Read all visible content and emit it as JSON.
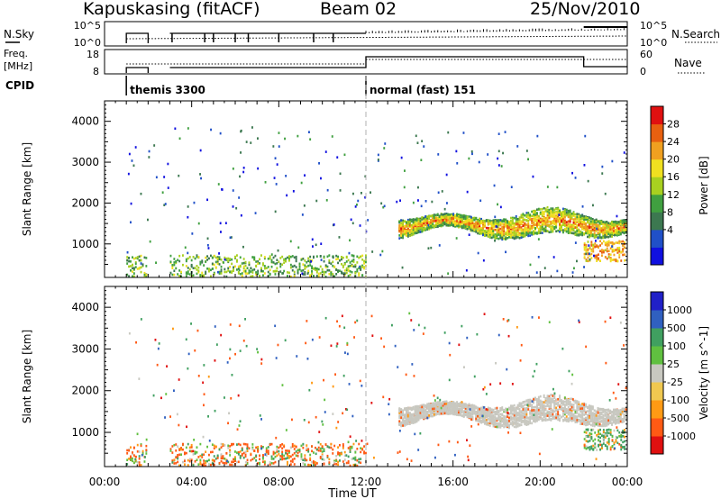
{
  "header": {
    "station": "Kapuskasing (fitACF)",
    "beam": "Beam 02",
    "date": "25/Nov/2010"
  },
  "summary": {
    "nsky": {
      "label": "N.Sky",
      "ticks": [
        "10^5",
        "10^0"
      ]
    },
    "nsearch": {
      "label": "N.Search",
      "ticks": [
        "10^5",
        "10^0"
      ]
    },
    "freq": {
      "label_top": "Freq.",
      "label_bottom": "[MHz]",
      "ticks": [
        "18",
        "8"
      ]
    },
    "nave": {
      "label": "Nave",
      "ticks": [
        "60",
        "0"
      ]
    },
    "cpid": {
      "label": "CPID",
      "modes": [
        {
          "name": "themis 3300",
          "start_hour": 1.0,
          "end_hour": 12.0
        },
        {
          "name": "normal (fast) 151",
          "start_hour": 12.0,
          "end_hour": 24.0
        }
      ]
    }
  },
  "chart_data": [
    {
      "type": "heatmap",
      "quantity": "Power",
      "xlabel": "",
      "ylabel": "Slant Range [km]",
      "xlim": [
        0,
        24
      ],
      "ylim": [
        180,
        4500
      ],
      "yticks": [
        1000,
        2000,
        3000,
        4000
      ],
      "colorbar": {
        "label": "Power [dB]",
        "ticks": [
          "28",
          "24",
          "20",
          "16",
          "12",
          "8",
          "4"
        ],
        "range": [
          0,
          30
        ]
      },
      "features": [
        {
          "kind": "near-range clutter",
          "t0": 1.0,
          "t1": 12.0,
          "r0": 200,
          "r1": 750,
          "level_db": 14
        },
        {
          "kind": "ionospheric band",
          "t0": 13.5,
          "t1": 24.0,
          "r0": 1150,
          "r1": 1950,
          "level_db": 18
        },
        {
          "kind": "late near-range echoes",
          "t0": 22.0,
          "t1": 24.0,
          "r0": 600,
          "r1": 1100,
          "level_db": 22
        }
      ]
    },
    {
      "type": "heatmap",
      "quantity": "Velocity",
      "xlabel": "Time UT",
      "ylabel": "Slant Range [km]",
      "xlim": [
        0,
        24
      ],
      "ylim": [
        180,
        4500
      ],
      "xticks": [
        "00:00",
        "04:00",
        "08:00",
        "12:00",
        "16:00",
        "20:00",
        "00:00"
      ],
      "yticks": [
        1000,
        2000,
        3000,
        4000
      ],
      "colorbar": {
        "label": "Velocity [m s^-1]",
        "ticks": [
          "1000",
          "500",
          "100",
          "25",
          "-25",
          "-100",
          "-500",
          "-1000"
        ],
        "range": [
          -1000,
          1000
        ]
      },
      "features": [
        {
          "kind": "near-range clutter",
          "t0": 1.0,
          "t1": 12.0,
          "r0": 200,
          "r1": 750,
          "velocity": -80
        },
        {
          "kind": "ground scatter band",
          "t0": 13.5,
          "t1": 24.0,
          "r0": 1150,
          "r1": 1950,
          "velocity": 0
        },
        {
          "kind": "late near-range echoes",
          "t0": 22.0,
          "t1": 24.0,
          "r0": 600,
          "r1": 1100,
          "velocity": 120
        }
      ]
    }
  ],
  "colors": {
    "power_scale": [
      "#1010e0",
      "#2050c8",
      "#3c7850",
      "#40a040",
      "#a8d020",
      "#f0e020",
      "#f0a020",
      "#e86010",
      "#e01010"
    ],
    "velocity_scale": [
      "#e01010",
      "#ff5a14",
      "#ff9a14",
      "#f0c850",
      "#c8c8c0",
      "#60c040",
      "#40a060",
      "#3060c0",
      "#2020c8"
    ],
    "ground_scatter": "#c8c8c0",
    "divider_dash": "#b0b0b0"
  }
}
